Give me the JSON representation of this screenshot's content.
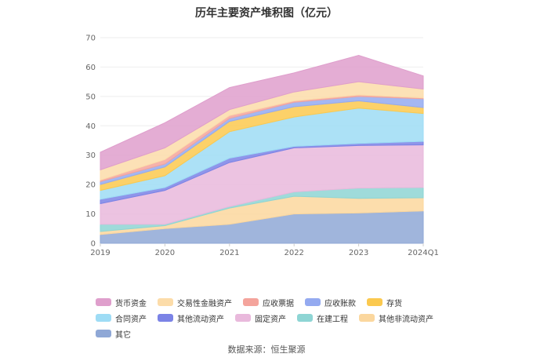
{
  "chart_data": {
    "type": "area",
    "stacked": true,
    "title": "历年主要资产堆积图（亿元）",
    "categories": [
      "2019",
      "2020",
      "2021",
      "2022",
      "2023",
      "2024Q1"
    ],
    "ylim": [
      0,
      70
    ],
    "yticks": [
      0,
      10,
      20,
      30,
      40,
      50,
      60,
      70
    ],
    "grid": true,
    "legend_position": "bottom",
    "series": [
      {
        "name": "其它",
        "color": "#8fa8d6",
        "values": [
          3.0,
          5.0,
          6.5,
          10.0,
          10.3,
          11.0
        ]
      },
      {
        "name": "其他非流动资产",
        "color": "#fbd79e",
        "values": [
          1.0,
          1.0,
          5.5,
          6.0,
          5.0,
          4.5
        ]
      },
      {
        "name": "在建工程",
        "color": "#8ed5d4",
        "values": [
          2.5,
          0.5,
          0.5,
          1.5,
          3.5,
          3.5
        ]
      },
      {
        "name": "固定资产",
        "color": "#e9b9dc",
        "values": [
          7.0,
          11.5,
          15.0,
          15.0,
          14.5,
          14.5
        ]
      },
      {
        "name": "其他流动资产",
        "color": "#7b83e6",
        "values": [
          1.5,
          1.0,
          1.5,
          0.5,
          0.7,
          1.2
        ]
      },
      {
        "name": "合同资产",
        "color": "#9edcf5",
        "values": [
          3.0,
          4.0,
          9.0,
          10.0,
          12.0,
          9.5
        ]
      },
      {
        "name": "存货",
        "color": "#fbc94f",
        "values": [
          2.0,
          3.0,
          3.5,
          3.5,
          2.5,
          2.0
        ]
      },
      {
        "name": "应收账款",
        "color": "#94aaf0",
        "values": [
          1.0,
          1.0,
          1.0,
          1.5,
          1.5,
          3.0
        ]
      },
      {
        "name": "应收票据",
        "color": "#f4a49c",
        "values": [
          0.5,
          1.5,
          1.0,
          0.5,
          0.5,
          0.3
        ]
      },
      {
        "name": "交易性金融资产",
        "color": "#fcdca9",
        "values": [
          3.5,
          4.0,
          2.0,
          3.0,
          4.5,
          3.0
        ]
      },
      {
        "name": "货币资金",
        "color": "#df9fcc",
        "values": [
          6.0,
          8.5,
          7.5,
          6.5,
          9.0,
          4.5
        ]
      }
    ],
    "legend_order": [
      "货币资金",
      "交易性金融资产",
      "应收票据",
      "应收账款",
      "存货",
      "合同资产",
      "其他流动资产",
      "固定资产",
      "在建工程",
      "其他非流动资产",
      "其它"
    ]
  },
  "source_text": "数据来源：恒生聚源"
}
